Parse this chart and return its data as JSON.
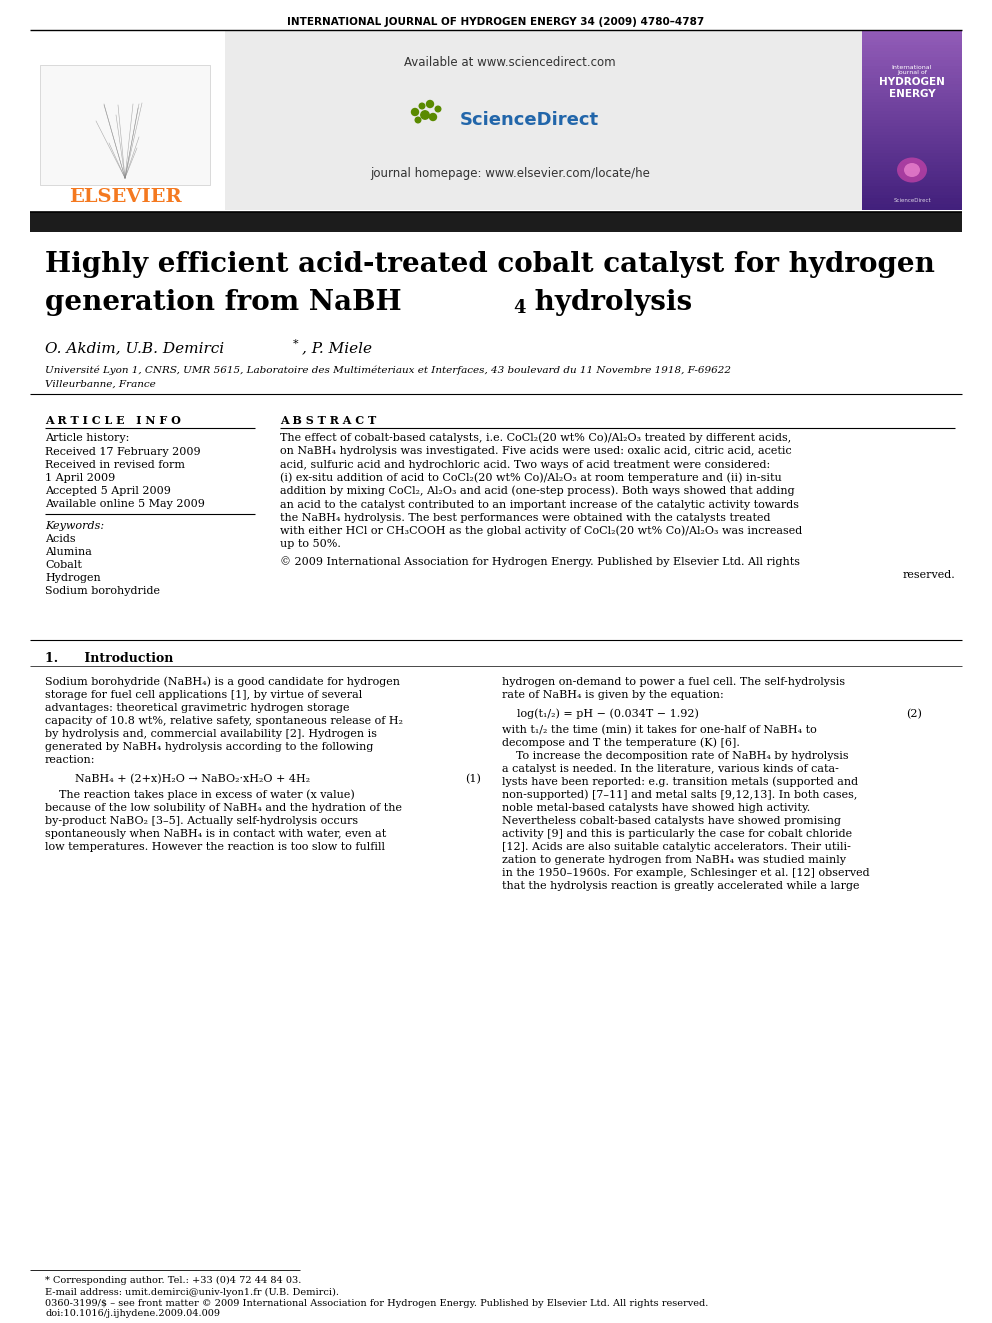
{
  "journal_header": "INTERNATIONAL JOURNAL OF HYDROGEN ENERGY 34 (2009) 4780–4787",
  "sciencedirect_url": "Available at www.sciencedirect.com",
  "journal_homepage": "journal homepage: www.elsevier.com/locate/he",
  "authors": "O. Akdim, U.B. Demirci*, P. Miele",
  "affiliation": "Université Lyon 1, CNRS, UMR 5615, Laboratoire des Multiméteriaux et Interfaces, 43 boulevard du 11 Novembre 1918, F-69622",
  "affiliation2": "Villeurbanne, France",
  "article_info_header": "ARTICLE INFO",
  "abstract_header": "ABSTRACT",
  "article_history_label": "Article history:",
  "received1": "Received 17 February 2009",
  "received2": "Received in revised form",
  "received2b": "1 April 2009",
  "accepted": "Accepted 5 April 2009",
  "available": "Available online 5 May 2009",
  "keywords_label": "Keywords:",
  "keywords": [
    "Acids",
    "Alumina",
    "Cobalt",
    "Hydrogen",
    "Sodium borohydride"
  ],
  "abs_lines": [
    "The effect of cobalt-based catalysts, i.e. CoCl₂(20 wt% Co)/Al₂O₃ treated by different acids,",
    "on NaBH₄ hydrolysis was investigated. Five acids were used: oxalic acid, citric acid, acetic",
    "acid, sulfuric acid and hydrochloric acid. Two ways of acid treatment were considered:",
    "(i) ex-situ addition of acid to CoCl₂(20 wt% Co)/Al₂O₃ at room temperature and (ii) in-situ",
    "addition by mixing CoCl₂, Al₂O₃ and acid (one-step process). Both ways showed that adding",
    "an acid to the catalyst contributed to an important increase of the catalytic activity towards",
    "the NaBH₄ hydrolysis. The best performances were obtained with the catalysts treated",
    "with either HCl or CH₃COOH as the global activity of CoCl₂(20 wt% Co)/Al₂O₃ was increased",
    "up to 50%."
  ],
  "copyright_line1": "© 2009 International Association for Hydrogen Energy. Published by Elsevier Ltd. All rights",
  "copyright_line2": "reserved.",
  "section1_title": "1.      Introduction",
  "intro_col1": [
    "Sodium borohydride (NaBH₄) is a good candidate for hydrogen",
    "storage for fuel cell applications [1], by virtue of several",
    "advantages: theoretical gravimetric hydrogen storage",
    "capacity of 10.8 wt%, relative safety, spontaneous release of H₂",
    "by hydrolysis and, commercial availability [2]. Hydrogen is",
    "generated by NaBH₄ hydrolysis according to the following",
    "reaction:"
  ],
  "equation1_lhs": "NaBH₄ + (2+x)H₂O → NaBO₂·xH₂O + 4H₂",
  "equation1_num": "(1)",
  "intro_col1_p2": [
    "    The reaction takes place in excess of water (x value)",
    "because of the low solubility of NaBH₄ and the hydration of the",
    "by-product NaBO₂ [3–5]. Actually self-hydrolysis occurs",
    "spontaneously when NaBH₄ is in contact with water, even at",
    "low temperatures. However the reaction is too slow to fulfill"
  ],
  "intro_col2": [
    "hydrogen on-demand to power a fuel cell. The self-hydrolysis",
    "rate of NaBH₄ is given by the equation:"
  ],
  "equation2_lhs": "log(t₁/₂) = pH − (0.034T − 1.92)",
  "equation2_num": "(2)",
  "intro_col2_p2": [
    "with t₁/₂ the time (min) it takes for one-half of NaBH₄ to",
    "decompose and T the temperature (K) [6].",
    "    To increase the decomposition rate of NaBH₄ by hydrolysis",
    "a catalyst is needed. In the literature, various kinds of cata-",
    "lysts have been reported: e.g. transition metals (supported and",
    "non-supported) [7–11] and metal salts [9,12,13]. In both cases,",
    "noble metal-based catalysts have showed high activity.",
    "Nevertheless cobalt-based catalysts have showed promising",
    "activity [9] and this is particularly the case for cobalt chloride",
    "[12]. Acids are also suitable catalytic accelerators. Their utili-",
    "zation to generate hydrogen from NaBH₄ was studied mainly",
    "in the 1950–1960s. For example, Schlesinger et al. [12] observed",
    "that the hydrolysis reaction is greatly accelerated while a large"
  ],
  "footnote1": "* Corresponding author. Tel.: +33 (0)4 72 44 84 03.",
  "footnote2": "E-mail address: umit.demirci@univ-lyon1.fr (U.B. Demirci).",
  "footnote3": "0360-3199/$ – see front matter © 2009 International Association for Hydrogen Energy. Published by Elsevier Ltd. All rights reserved.",
  "footnote4": "doi:10.1016/j.ijhydene.2009.04.009",
  "bg": "#ffffff",
  "header_gray": "#ebebeb",
  "title_bar": "#1c1c1c",
  "elsevier_orange": "#f47920",
  "elsevier_red": "#cc0000"
}
